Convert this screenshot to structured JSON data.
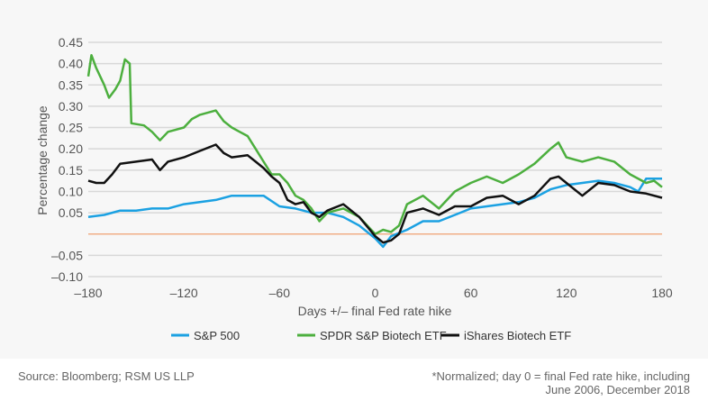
{
  "chart_data": {
    "type": "line",
    "xlabel": "Days +/– final Fed rate hike",
    "ylabel": "Percentage change",
    "xlim": [
      -180,
      180
    ],
    "ylim": [
      -0.1,
      0.45
    ],
    "xticks": [
      -180,
      -120,
      -60,
      0,
      60,
      120,
      180
    ],
    "xtick_labels": [
      "–180",
      "–120",
      "–60",
      "0",
      "60",
      "120",
      "180"
    ],
    "yticks": [
      0.45,
      0.4,
      0.35,
      0.3,
      0.25,
      0.2,
      0.15,
      0.1,
      0.05,
      -0.05,
      -0.1
    ],
    "ytick_labels": [
      "0.45",
      "0.40",
      "0.35",
      "0.30",
      "0.25",
      "0.20",
      "0.15",
      "0.10",
      "0.05",
      "–0.05",
      "–0.10"
    ],
    "grid": true,
    "zero_line_color": "#f0a070",
    "legend_position": "bottom",
    "series": [
      {
        "name": "S&P 500",
        "color": "#1ba1e2",
        "x": [
          -180,
          -170,
          -160,
          -150,
          -140,
          -130,
          -120,
          -110,
          -100,
          -90,
          -80,
          -70,
          -60,
          -50,
          -40,
          -30,
          -20,
          -10,
          0,
          5,
          10,
          20,
          30,
          40,
          50,
          60,
          70,
          80,
          90,
          100,
          110,
          120,
          130,
          140,
          150,
          160,
          165,
          170,
          180
        ],
        "y": [
          0.04,
          0.045,
          0.055,
          0.055,
          0.06,
          0.06,
          0.07,
          0.075,
          0.08,
          0.09,
          0.09,
          0.09,
          0.065,
          0.06,
          0.05,
          0.05,
          0.04,
          0.02,
          -0.01,
          -0.03,
          -0.005,
          0.01,
          0.03,
          0.03,
          0.045,
          0.06,
          0.065,
          0.07,
          0.075,
          0.085,
          0.105,
          0.115,
          0.12,
          0.125,
          0.12,
          0.11,
          0.1,
          0.13,
          0.13
        ]
      },
      {
        "name": "SPDR S&P Biotech ETF",
        "color": "#4caf3e",
        "x": [
          -180,
          -178,
          -175,
          -170,
          -167,
          -163,
          -160,
          -157,
          -154,
          -153,
          -145,
          -140,
          -135,
          -130,
          -125,
          -120,
          -115,
          -110,
          -100,
          -95,
          -90,
          -85,
          -80,
          -75,
          -70,
          -65,
          -60,
          -55,
          -50,
          -45,
          -40,
          -35,
          -30,
          -20,
          -10,
          0,
          5,
          10,
          15,
          20,
          30,
          40,
          50,
          60,
          70,
          80,
          90,
          100,
          110,
          115,
          120,
          130,
          140,
          150,
          160,
          170,
          175,
          180
        ],
        "y": [
          0.37,
          0.42,
          0.39,
          0.35,
          0.32,
          0.34,
          0.36,
          0.41,
          0.4,
          0.26,
          0.255,
          0.24,
          0.22,
          0.24,
          0.245,
          0.25,
          0.27,
          0.28,
          0.29,
          0.265,
          0.25,
          0.24,
          0.23,
          0.2,
          0.17,
          0.14,
          0.14,
          0.12,
          0.09,
          0.08,
          0.06,
          0.03,
          0.05,
          0.06,
          0.04,
          0.0,
          0.01,
          0.005,
          0.02,
          0.07,
          0.09,
          0.06,
          0.1,
          0.12,
          0.135,
          0.12,
          0.14,
          0.165,
          0.2,
          0.215,
          0.18,
          0.17,
          0.18,
          0.17,
          0.14,
          0.12,
          0.125,
          0.11
        ]
      },
      {
        "name": "iShares Biotech ETF",
        "color": "#111111",
        "x": [
          -180,
          -175,
          -170,
          -165,
          -160,
          -150,
          -140,
          -135,
          -130,
          -120,
          -110,
          -100,
          -95,
          -90,
          -80,
          -75,
          -70,
          -65,
          -60,
          -55,
          -50,
          -45,
          -40,
          -35,
          -30,
          -20,
          -10,
          0,
          5,
          10,
          15,
          20,
          30,
          40,
          50,
          60,
          70,
          80,
          90,
          100,
          110,
          115,
          120,
          130,
          140,
          150,
          160,
          170,
          180
        ],
        "y": [
          0.125,
          0.12,
          0.12,
          0.14,
          0.165,
          0.17,
          0.175,
          0.15,
          0.17,
          0.18,
          0.195,
          0.21,
          0.19,
          0.18,
          0.185,
          0.17,
          0.155,
          0.135,
          0.12,
          0.08,
          0.07,
          0.075,
          0.05,
          0.04,
          0.055,
          0.07,
          0.04,
          -0.005,
          -0.02,
          -0.015,
          0.0,
          0.05,
          0.06,
          0.045,
          0.065,
          0.065,
          0.085,
          0.09,
          0.07,
          0.09,
          0.13,
          0.135,
          0.12,
          0.09,
          0.12,
          0.115,
          0.1,
          0.095,
          0.085
        ]
      }
    ]
  },
  "footer": {
    "source": "Source: Bloomberg; RSM US LLP",
    "note_line1": "*Normalized; day 0 = final Fed rate hike, including",
    "note_line2": "June 2006, December 2018"
  }
}
